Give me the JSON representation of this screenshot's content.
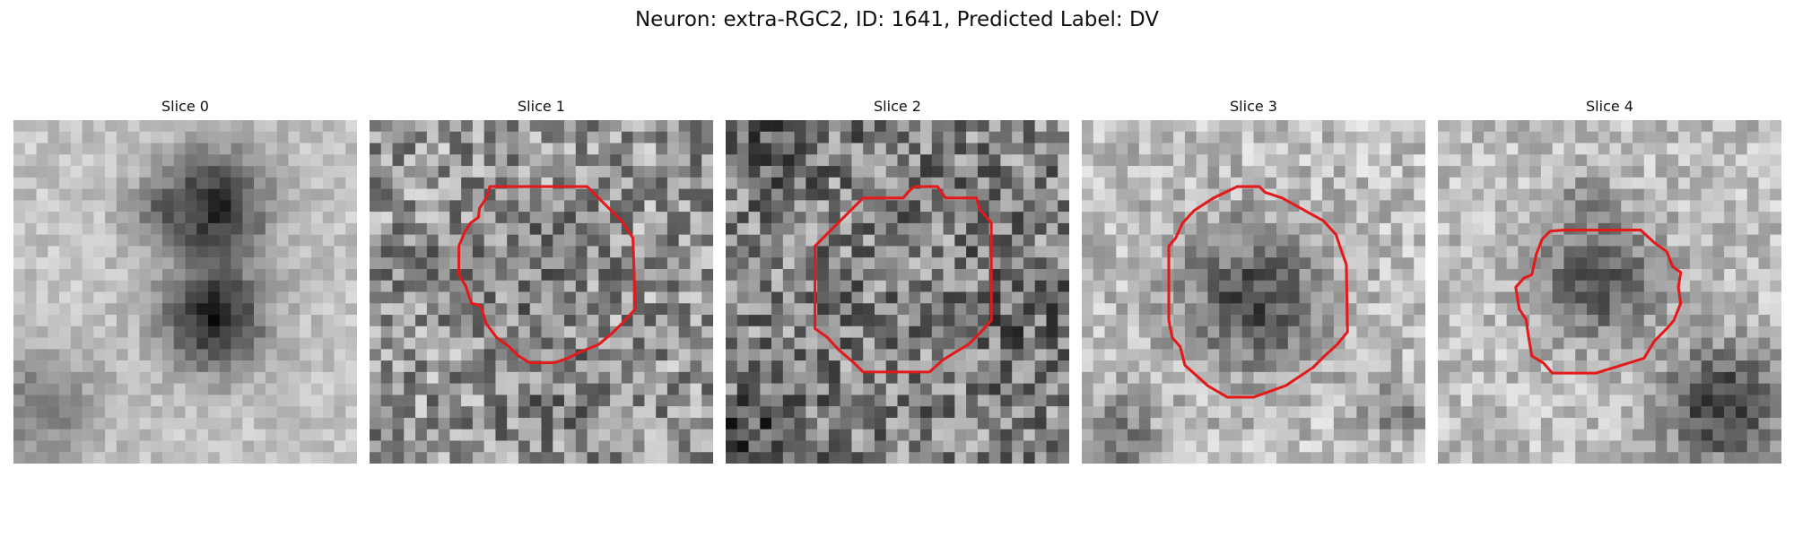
{
  "figure": {
    "title": "Neuron: extra-RGC2, ID: 1641, Predicted Label: DV"
  },
  "panels": [
    {
      "title": "Slice 0",
      "has_outline": false
    },
    {
      "title": "Slice 1",
      "has_outline": true
    },
    {
      "title": "Slice 2",
      "has_outline": true
    },
    {
      "title": "Slice 3",
      "has_outline": true
    },
    {
      "title": "Slice 4",
      "has_outline": true
    }
  ],
  "colors": {
    "outline": "#e31a1c",
    "background": "#ffffff"
  }
}
